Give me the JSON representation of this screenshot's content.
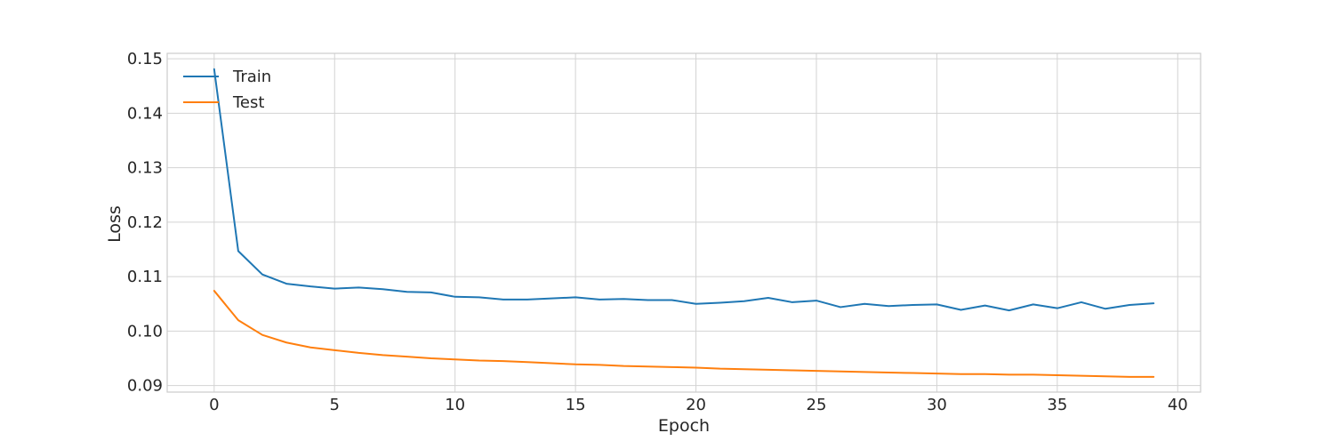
{
  "chart_data": {
    "type": "line",
    "title": "",
    "xlabel": "Epoch",
    "ylabel": "Loss",
    "xlim": [
      -1.95,
      40.95
    ],
    "ylim": [
      0.0888,
      0.151
    ],
    "xticks": [
      0,
      5,
      10,
      15,
      20,
      25,
      30,
      35,
      40
    ],
    "yticks": [
      0.09,
      0.1,
      0.11,
      0.12,
      0.13,
      0.14,
      0.15
    ],
    "ytick_labels": [
      "0.09",
      "0.10",
      "0.11",
      "0.12",
      "0.13",
      "0.14",
      "0.15"
    ],
    "grid": true,
    "legend": "upper-left",
    "x": [
      0,
      1,
      2,
      3,
      4,
      5,
      6,
      7,
      8,
      9,
      10,
      11,
      12,
      13,
      14,
      15,
      16,
      17,
      18,
      19,
      20,
      21,
      22,
      23,
      24,
      25,
      26,
      27,
      28,
      29,
      30,
      31,
      32,
      33,
      34,
      35,
      36,
      37,
      38,
      39
    ],
    "series": [
      {
        "name": "Train",
        "color": "#1f77b4",
        "values": [
          0.1481,
          0.1147,
          0.1104,
          0.1087,
          0.1082,
          0.1078,
          0.108,
          0.1077,
          0.1072,
          0.1071,
          0.1063,
          0.1062,
          0.1058,
          0.1058,
          0.106,
          0.1062,
          0.1058,
          0.1059,
          0.1057,
          0.1057,
          0.105,
          0.1052,
          0.1055,
          0.1061,
          0.1053,
          0.1056,
          0.1044,
          0.105,
          0.1046,
          0.1048,
          0.1049,
          0.1039,
          0.1047,
          0.1038,
          0.1049,
          0.1042,
          0.1053,
          0.1041,
          0.1048,
          0.1051
        ]
      },
      {
        "name": "Test",
        "color": "#ff7f0e",
        "values": [
          0.1074,
          0.102,
          0.0993,
          0.0979,
          0.097,
          0.0965,
          0.096,
          0.0956,
          0.0953,
          0.095,
          0.0948,
          0.0946,
          0.0945,
          0.0943,
          0.0941,
          0.0939,
          0.0938,
          0.0936,
          0.0935,
          0.0934,
          0.0933,
          0.0931,
          0.093,
          0.0929,
          0.0928,
          0.0927,
          0.0926,
          0.0925,
          0.0924,
          0.0923,
          0.0922,
          0.0921,
          0.0921,
          0.092,
          0.092,
          0.0919,
          0.0918,
          0.0917,
          0.0916,
          0.0916
        ]
      }
    ]
  }
}
